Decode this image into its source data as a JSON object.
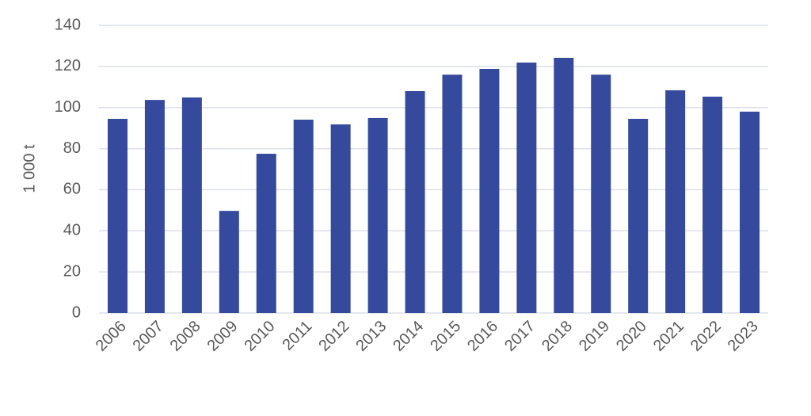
{
  "chart_data": {
    "type": "bar",
    "y_label": "1 000 t",
    "categories": [
      "2006",
      "2007",
      "2008",
      "2009",
      "2010",
      "2011",
      "2012",
      "2013",
      "2014",
      "2015",
      "2016",
      "2017",
      "2018",
      "2019",
      "2020",
      "2021",
      "2022",
      "2023"
    ],
    "values": [
      94.5,
      103.7,
      104.9,
      49.7,
      77.5,
      94.1,
      91.8,
      94.9,
      108,
      116,
      118.8,
      121.9,
      124.2,
      116,
      94.5,
      108.4,
      105.3,
      98
    ],
    "color": "#354a9c",
    "ylim": [
      0,
      140
    ],
    "yticks": [
      0,
      20,
      40,
      60,
      80,
      100,
      120,
      140
    ],
    "grid": true
  }
}
